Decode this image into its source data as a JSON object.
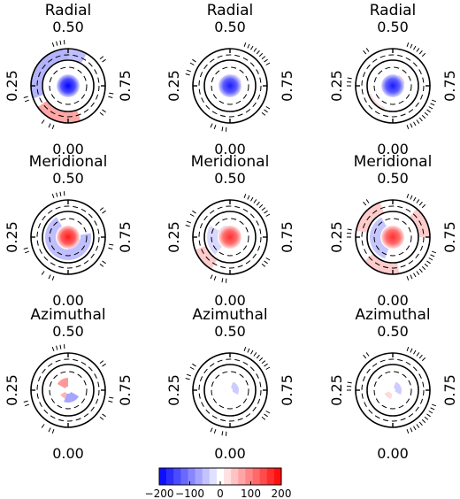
{
  "figure": {
    "rows": [
      {
        "title": "Radial",
        "cmap_sign": -1
      },
      {
        "title": "Meridional",
        "cmap_sign": 1
      },
      {
        "title": "Azimuthal",
        "cmap_sign": 0
      }
    ],
    "phase_labels": {
      "top": "0.50",
      "left": "0.25",
      "right": "0.75",
      "bottom": "0.00"
    },
    "columns": 3
  },
  "colorbar": {
    "ticks": [
      "−200",
      "−100",
      "0",
      "100",
      "200"
    ],
    "min": -200,
    "max": 200,
    "levels": 17,
    "low_color": "#0000ff",
    "mid_color": "#ffffff",
    "high_color": "#ff0000"
  }
}
